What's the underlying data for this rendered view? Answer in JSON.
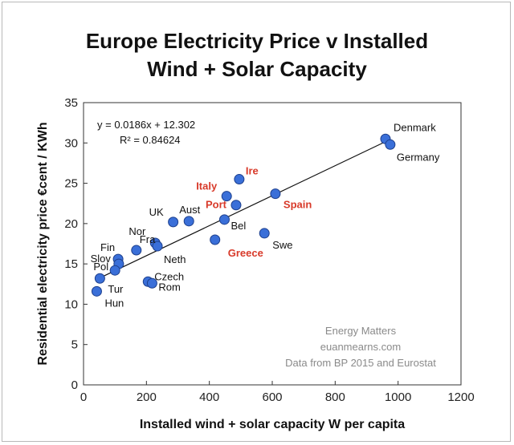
{
  "chart_data": {
    "type": "scatter",
    "title": [
      "Europe Electricity Price v Installed",
      "Wind + Solar Capacity"
    ],
    "xlabel": "Installed wind + solar capacity W per capita",
    "ylabel": "Residential electricity price €cent / KWh",
    "xlim": [
      0,
      1200
    ],
    "ylim": [
      0,
      35
    ],
    "xticks": [
      0,
      200,
      400,
      600,
      800,
      1000,
      1200
    ],
    "yticks": [
      0,
      5,
      10,
      15,
      20,
      25,
      30,
      35
    ],
    "grid": false,
    "marker_color": "#3a6fd8",
    "highlight_color": "#d83a2a",
    "trendline": {
      "slope": 0.0186,
      "intercept": 12.302,
      "equation": "y = 0.0186x + 12.302",
      "r2": "R² = 0.84624"
    },
    "points": [
      {
        "label": "Denmark",
        "x": 960,
        "y": 30.5,
        "highlight": false
      },
      {
        "label": "Germany",
        "x": 975,
        "y": 29.8,
        "highlight": false
      },
      {
        "label": "Ire",
        "x": 495,
        "y": 25.5,
        "highlight": true
      },
      {
        "label": "Italy",
        "x": 455,
        "y": 23.4,
        "highlight": true
      },
      {
        "label": "Spain",
        "x": 610,
        "y": 23.7,
        "highlight": true
      },
      {
        "label": "Port",
        "x": 485,
        "y": 22.3,
        "highlight": true
      },
      {
        "label": "UK",
        "x": 285,
        "y": 20.2,
        "highlight": false
      },
      {
        "label": "Aust",
        "x": 335,
        "y": 20.3,
        "highlight": false
      },
      {
        "label": "Bel",
        "x": 448,
        "y": 20.5,
        "highlight": false
      },
      {
        "label": "Greece",
        "x": 418,
        "y": 18.0,
        "highlight": true
      },
      {
        "label": "Swe",
        "x": 575,
        "y": 18.8,
        "highlight": false
      },
      {
        "label": "Fra",
        "x": 168,
        "y": 16.7,
        "highlight": false
      },
      {
        "label": "Nor",
        "x": 228,
        "y": 17.6,
        "highlight": false
      },
      {
        "label": "Neth",
        "x": 235,
        "y": 17.2,
        "highlight": false
      },
      {
        "label": "Fin",
        "x": 110,
        "y": 15.6,
        "highlight": false
      },
      {
        "label": "Slov",
        "x": 112,
        "y": 15.0,
        "highlight": false
      },
      {
        "label": "Pol",
        "x": 100,
        "y": 14.2,
        "highlight": false
      },
      {
        "label": "Tur",
        "x": 52,
        "y": 13.2,
        "highlight": false
      },
      {
        "label": "Hun",
        "x": 42,
        "y": 11.6,
        "highlight": false
      },
      {
        "label": "Czech",
        "x": 205,
        "y": 12.8,
        "highlight": false
      },
      {
        "label": "Rom",
        "x": 218,
        "y": 12.6,
        "highlight": false
      }
    ],
    "annotations": [
      "Energy Matters",
      "euanmearns.com",
      "Data from BP 2015 and Eurostat"
    ]
  }
}
